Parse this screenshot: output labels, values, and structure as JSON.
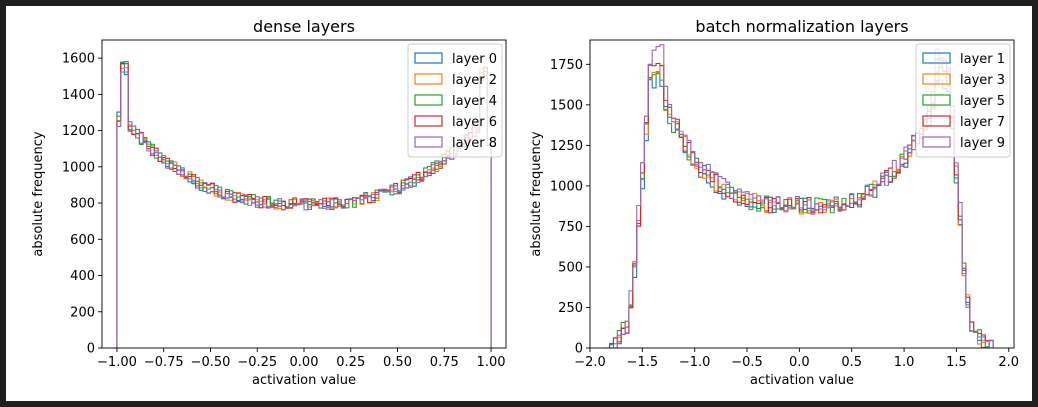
{
  "colors": {
    "background": "#1e1e1e",
    "figure": "#ffffff",
    "tab10": [
      "#1f77b4",
      "#ff7f0e",
      "#2ca02c",
      "#d62728",
      "#9467bd"
    ]
  },
  "chart_data": [
    {
      "type": "histogram",
      "title": "dense layers",
      "xlabel": "activation value",
      "ylabel": "absolute frequency",
      "xlim": [
        -1.08,
        1.08
      ],
      "ylim": [
        0,
        1700
      ],
      "xticks": [
        -1.0,
        -0.75,
        -0.5,
        -0.25,
        0.0,
        0.25,
        0.5,
        0.75,
        1.0
      ],
      "xtick_labels": [
        "−1.00",
        "−0.75",
        "−0.50",
        "−0.25",
        "0.00",
        "0.25",
        "0.50",
        "0.75",
        "1.00"
      ],
      "yticks": [
        0,
        200,
        400,
        600,
        800,
        1000,
        1200,
        1400,
        1600
      ],
      "ytick_labels": [
        "0",
        "200",
        "400",
        "600",
        "800",
        "1000",
        "1200",
        "1400",
        "1600"
      ],
      "legend": "top-right",
      "grid": false,
      "bins": {
        "start": -1.0,
        "end": 1.0,
        "count": 100
      },
      "series": [
        {
          "name": "layer 0",
          "color": "#1f77b4",
          "peak": 1540,
          "tail": 1170
        },
        {
          "name": "layer 2",
          "color": "#ff7f0e",
          "peak": 1555,
          "tail": 1090
        },
        {
          "name": "layer 4",
          "color": "#2ca02c",
          "peak": 1565,
          "tail": 1120
        },
        {
          "name": "layer 6",
          "color": "#d62728",
          "peak": 1600,
          "tail": 1060
        },
        {
          "name": "layer 8",
          "color": "#9467bd",
          "peak": 1530,
          "tail": 1050
        }
      ]
    },
    {
      "type": "histogram",
      "title": "batch normalization layers",
      "xlabel": "activation value",
      "ylabel": "absolute frequency",
      "xlim": [
        -2.0,
        2.05
      ],
      "ylim": [
        0,
        1900
      ],
      "xticks": [
        -2.0,
        -1.5,
        -1.0,
        -0.5,
        0.0,
        0.5,
        1.0,
        1.5,
        2.0
      ],
      "xtick_labels": [
        "−2.0",
        "−1.5",
        "−1.0",
        "−0.5",
        "0.0",
        "0.5",
        "1.0",
        "1.5",
        "2.0"
      ],
      "yticks": [
        0,
        250,
        500,
        750,
        1000,
        1250,
        1500,
        1750
      ],
      "ytick_labels": [
        "0",
        "250",
        "500",
        "750",
        "1000",
        "1250",
        "1500",
        "1750"
      ],
      "legend": "top-right",
      "grid": false,
      "bins": {
        "start": -1.85,
        "end": 1.85,
        "count": 100
      },
      "series": [
        {
          "name": "layer 1",
          "color": "#1f77b4",
          "peak": 1650
        },
        {
          "name": "layer 3",
          "color": "#ff7f0e",
          "peak": 1730
        },
        {
          "name": "layer 5",
          "color": "#2ca02c",
          "peak": 1700
        },
        {
          "name": "layer 7",
          "color": "#d62728",
          "peak": 1740
        },
        {
          "name": "layer 9",
          "color": "#9467bd",
          "peak": 1820
        }
      ]
    }
  ]
}
